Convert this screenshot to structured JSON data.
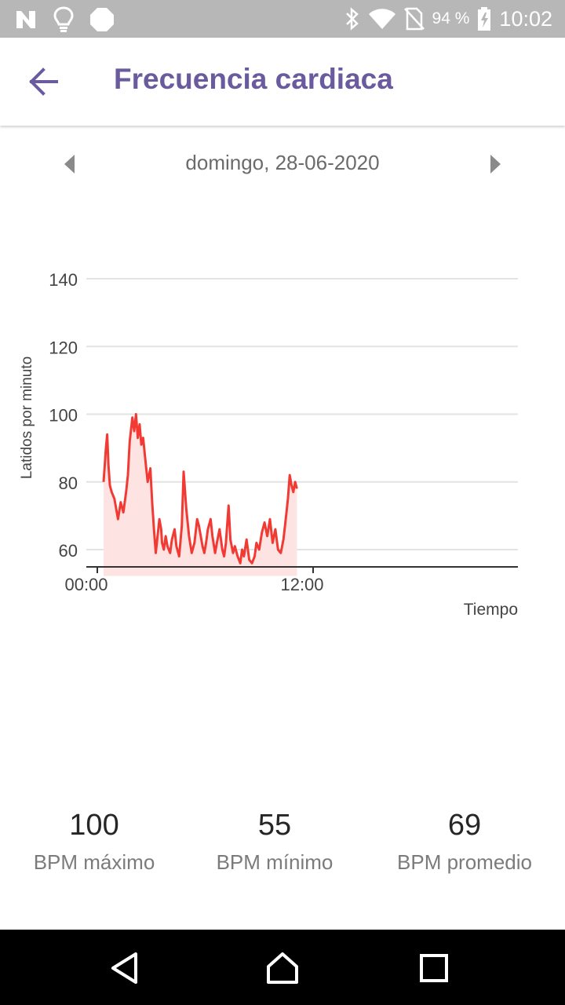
{
  "status_bar": {
    "icons": [
      "n-notification-icon",
      "lightbulb-icon",
      "stop-octagon-icon",
      "bluetooth-icon",
      "wifi-icon",
      "no-sim-icon",
      "battery-charging-icon"
    ],
    "battery_percent": "94 %",
    "time": "10:02"
  },
  "app_bar": {
    "title": "Frecuencia cardiaca",
    "back_icon": "arrow-left-icon"
  },
  "date_nav": {
    "date": "domingo, 28-06-2020",
    "prev_icon": "triangle-left-icon",
    "next_icon": "triangle-right-icon"
  },
  "chart_data": {
    "type": "area",
    "title": "",
    "xlabel": "Tiempo",
    "ylabel": "Latidos por minuto",
    "x_ticks": [
      "00:00",
      "12:00"
    ],
    "y_ticks": [
      60,
      80,
      100,
      120,
      140
    ],
    "xlim": [
      0,
      24
    ],
    "ylim": [
      55,
      140
    ],
    "grid": true,
    "colors": {
      "line": "#f23a34",
      "fill": "#fde4e2",
      "grid": "#e3e3e3",
      "axis": "#333333"
    },
    "series": [
      {
        "x": [
          0.35,
          0.48,
          0.55,
          0.62,
          0.7,
          0.8,
          0.95,
          1.05,
          1.15,
          1.3,
          1.45,
          1.6,
          1.7,
          1.8,
          1.95,
          2.05,
          2.15,
          2.25,
          2.35,
          2.45,
          2.55,
          2.7,
          2.8,
          2.95,
          3.05,
          3.15,
          3.25,
          3.35,
          3.45,
          3.55,
          3.6,
          3.7,
          3.8,
          3.9,
          4.05,
          4.15,
          4.3,
          4.4,
          4.55,
          4.7,
          4.8,
          4.95,
          5.1,
          5.25,
          5.4,
          5.55,
          5.65,
          5.75,
          5.85,
          5.95,
          6.05,
          6.15,
          6.3,
          6.4,
          6.55,
          6.65,
          6.8,
          6.95,
          7.05,
          7.15,
          7.3,
          7.4,
          7.55,
          7.65,
          7.8,
          7.95,
          8.05,
          8.15,
          8.3,
          8.45,
          8.6,
          8.75,
          8.85,
          9.0,
          9.15,
          9.3,
          9.45,
          9.6,
          9.75,
          9.9,
          10.05,
          10.2,
          10.35,
          10.5,
          10.6,
          10.7,
          10.8,
          10.9,
          11.0,
          11.1
        ],
        "y": [
          80,
          90,
          94,
          85,
          79,
          77,
          75,
          72,
          69,
          74,
          71,
          77,
          82,
          92,
          99,
          95,
          100,
          93,
          97,
          91,
          93,
          85,
          80,
          84,
          74,
          66,
          59,
          64,
          69,
          66,
          62,
          60,
          64,
          61,
          59,
          63,
          66,
          61,
          58,
          67,
          83,
          72,
          64,
          59,
          62,
          69,
          67,
          64,
          61,
          59,
          62,
          66,
          69,
          64,
          59,
          62,
          66,
          60,
          58,
          62,
          73,
          63,
          59,
          61,
          58,
          56,
          60,
          58,
          63,
          57,
          56,
          58,
          62,
          60,
          65,
          68,
          64,
          69,
          62,
          66,
          60,
          59,
          63,
          70,
          75,
          82,
          79,
          77,
          80,
          78
        ]
      }
    ]
  },
  "stats": [
    {
      "value": "100",
      "label": "BPM máximo"
    },
    {
      "value": "55",
      "label": "BPM mínimo"
    },
    {
      "value": "69",
      "label": "BPM promedio"
    }
  ],
  "nav_bar": {
    "icons": [
      "back-triangle-icon",
      "home-icon",
      "recents-square-icon"
    ]
  }
}
